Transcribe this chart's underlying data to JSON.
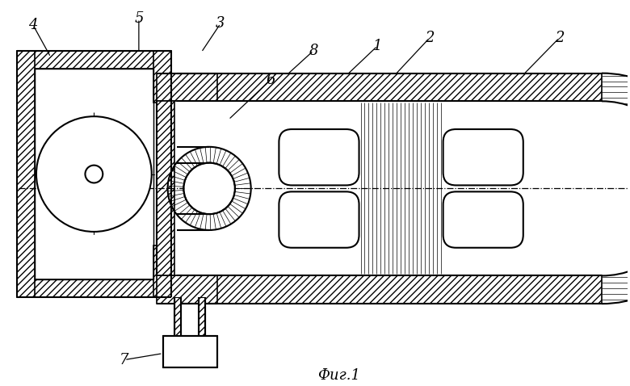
{
  "fig_width": 7.8,
  "fig_height": 4.78,
  "dpi": 100,
  "bg_color": "#ffffff",
  "caption": "Фиг.1"
}
